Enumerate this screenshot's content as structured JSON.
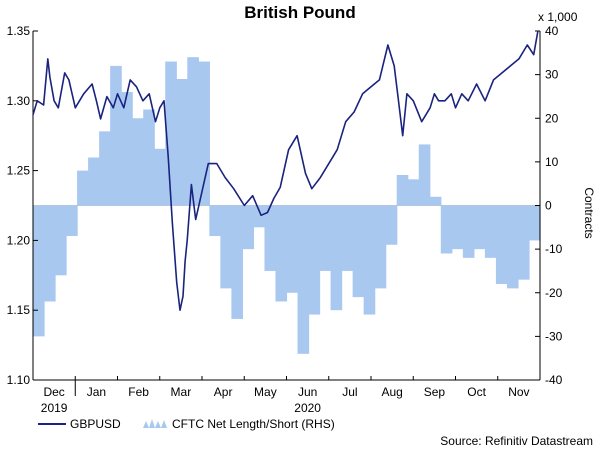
{
  "chart_data": {
    "type": "line+bar",
    "title": "British Pound",
    "left_axis": {
      "ylim": [
        1.1,
        1.35
      ],
      "ticks": [
        "1.10",
        "1.15",
        "1.20",
        "1.25",
        "1.30",
        "1.35"
      ],
      "tick_values": [
        1.1,
        1.15,
        1.2,
        1.25,
        1.3,
        1.35
      ]
    },
    "right_axis": {
      "label": "Contracts",
      "units_label": "x 1,000",
      "ylim": [
        -40,
        40
      ],
      "ticks": [
        "-40",
        "-30",
        "-20",
        "-10",
        "0",
        "10",
        "20",
        "30",
        "40"
      ],
      "tick_values": [
        -40,
        -30,
        -20,
        -10,
        0,
        10,
        20,
        30,
        40
      ]
    },
    "x_axis": {
      "tmin": 0,
      "tmax": 12,
      "month_labels": [
        {
          "label": "Dec",
          "t": 0.5
        },
        {
          "label": "Jan",
          "t": 1.5
        },
        {
          "label": "Feb",
          "t": 2.5
        },
        {
          "label": "Mar",
          "t": 3.5
        },
        {
          "label": "Apr",
          "t": 4.5
        },
        {
          "label": "May",
          "t": 5.5
        },
        {
          "label": "Jun",
          "t": 6.5
        },
        {
          "label": "Jul",
          "t": 7.5
        },
        {
          "label": "Aug",
          "t": 8.5
        },
        {
          "label": "Sep",
          "t": 9.5
        },
        {
          "label": "Oct",
          "t": 10.5
        },
        {
          "label": "Nov",
          "t": 11.5
        }
      ],
      "year_labels": [
        {
          "label": "2019",
          "t": 0.5
        },
        {
          "label": "2020",
          "t": 6.5
        }
      ]
    },
    "series": [
      {
        "name": "GBPUSD",
        "type": "line",
        "axis": "left",
        "color": "#1a237e",
        "t": [
          0.0,
          0.1,
          0.25,
          0.35,
          0.4,
          0.5,
          0.6,
          0.75,
          0.85,
          1.0,
          1.2,
          1.4,
          1.5,
          1.6,
          1.75,
          1.9,
          2.0,
          2.15,
          2.3,
          2.45,
          2.6,
          2.75,
          2.9,
          3.0,
          3.1,
          3.2,
          3.3,
          3.4,
          3.48,
          3.55,
          3.6,
          3.65,
          3.75,
          3.85,
          4.0,
          4.15,
          4.35,
          4.55,
          4.75,
          5.0,
          5.2,
          5.4,
          5.55,
          5.7,
          5.85,
          6.05,
          6.25,
          6.45,
          6.6,
          6.8,
          7.0,
          7.2,
          7.4,
          7.6,
          7.8,
          8.0,
          8.2,
          8.4,
          8.55,
          8.65,
          8.75,
          8.85,
          9.0,
          9.2,
          9.4,
          9.5,
          9.6,
          9.75,
          9.9,
          10.0,
          10.15,
          10.3,
          10.5,
          10.7,
          10.9,
          11.1,
          11.3,
          11.5,
          11.7,
          11.85,
          11.95
        ],
        "values": [
          1.29,
          1.3,
          1.297,
          1.33,
          1.317,
          1.3,
          1.295,
          1.32,
          1.315,
          1.295,
          1.305,
          1.312,
          1.3,
          1.287,
          1.303,
          1.295,
          1.305,
          1.295,
          1.315,
          1.31,
          1.3,
          1.305,
          1.285,
          1.295,
          1.3,
          1.26,
          1.212,
          1.17,
          1.15,
          1.16,
          1.185,
          1.2,
          1.24,
          1.215,
          1.235,
          1.255,
          1.255,
          1.245,
          1.237,
          1.225,
          1.232,
          1.218,
          1.22,
          1.23,
          1.238,
          1.265,
          1.275,
          1.248,
          1.237,
          1.245,
          1.255,
          1.265,
          1.285,
          1.292,
          1.305,
          1.31,
          1.315,
          1.34,
          1.325,
          1.3,
          1.275,
          1.305,
          1.3,
          1.285,
          1.295,
          1.305,
          1.3,
          1.3,
          1.305,
          1.295,
          1.305,
          1.3,
          1.312,
          1.3,
          1.315,
          1.32,
          1.325,
          1.33,
          1.34,
          1.333,
          1.35
        ]
      },
      {
        "name": "CFTC Net Length/Short (RHS)",
        "type": "bar",
        "axis": "right",
        "color": "#a8c8f0",
        "values": [
          -30,
          -22,
          -16,
          -7,
          8,
          11,
          17,
          32,
          26,
          20,
          22,
          13,
          33,
          29,
          34,
          33,
          -7,
          -19,
          -26,
          -10,
          -5,
          -15,
          -22,
          -20,
          -34,
          -25,
          -15,
          -24,
          -15,
          -21,
          -25,
          -19,
          -9,
          7,
          6,
          14,
          2,
          -11,
          -10,
          -12,
          -10,
          -12,
          -18,
          -19,
          -17,
          -8
        ]
      }
    ],
    "source": "Source: Refinitiv Datastream"
  }
}
